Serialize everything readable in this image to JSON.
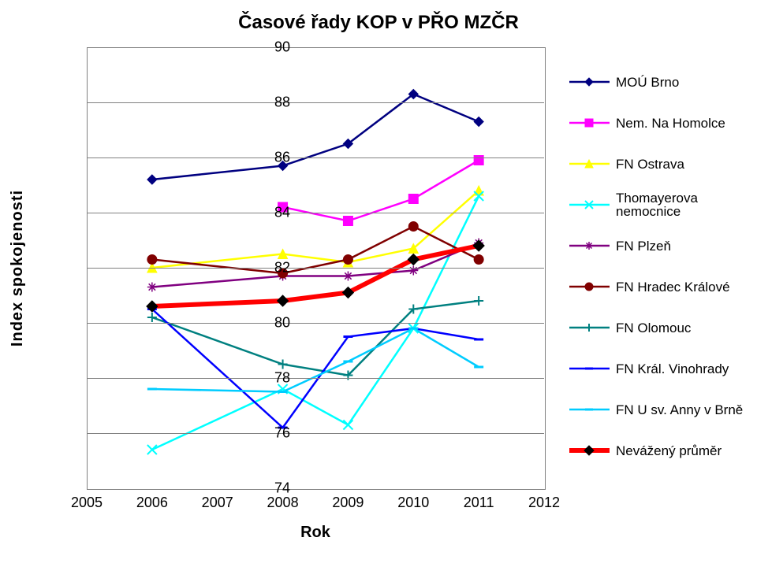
{
  "title": "Časové řady KOP v PŘO MZČR",
  "ylabel": "Index spokojenosti",
  "xlabel": "Rok",
  "background_color": "#ffffff",
  "grid_color": "#808080",
  "xlim": [
    2005,
    2012
  ],
  "ylim": [
    74,
    90
  ],
  "ytick_step": 2,
  "xtick_step": 1,
  "title_fontsize": 24,
  "label_fontsize": 20,
  "tick_fontsize": 18,
  "legend_fontsize": 17,
  "years": [
    2006,
    2008,
    2009,
    2010,
    2011
  ],
  "series": [
    {
      "name": "MOÚ Brno",
      "color": "#000080",
      "marker": "diamond",
      "width": 2.5,
      "values": [
        85.2,
        85.7,
        86.5,
        88.3,
        87.3
      ]
    },
    {
      "name": "Nem. Na Homolce",
      "color": "#ff00ff",
      "marker": "square",
      "width": 2.5,
      "values": [
        null,
        84.2,
        83.7,
        84.5,
        85.9
      ]
    },
    {
      "name": "FN Ostrava",
      "color": "#ffff00",
      "marker": "triangle",
      "width": 2.5,
      "values": [
        82.0,
        82.5,
        82.2,
        82.7,
        84.8
      ]
    },
    {
      "name": "Thomayerova nemocnice",
      "color": "#00ffff",
      "marker": "x",
      "width": 2.5,
      "values": [
        75.4,
        77.6,
        76.3,
        79.8,
        84.6
      ]
    },
    {
      "name": "FN Plzeň",
      "color": "#800080",
      "marker": "star",
      "width": 2.5,
      "values": [
        81.3,
        81.7,
        81.7,
        81.9,
        82.9
      ]
    },
    {
      "name": "FN Hradec Králové",
      "color": "#800000",
      "marker": "circle",
      "width": 2.5,
      "values": [
        82.3,
        81.8,
        82.3,
        83.5,
        82.3
      ]
    },
    {
      "name": "FN Olomouc",
      "color": "#008080",
      "marker": "plus",
      "width": 2.5,
      "values": [
        80.2,
        78.5,
        78.1,
        80.5,
        80.8
      ]
    },
    {
      "name": "FN Král. Vinohrady",
      "color": "#0000ff",
      "marker": "dash",
      "width": 2.5,
      "values": [
        80.5,
        76.2,
        79.5,
        79.8,
        79.4
      ]
    },
    {
      "name": "FN U sv. Anny v Brně",
      "color": "#00ccff",
      "marker": "dash",
      "width": 2.5,
      "values": [
        77.6,
        77.5,
        78.6,
        79.8,
        78.4
      ]
    },
    {
      "name": "Nevážený průměr",
      "color": "#ff0000",
      "marker": "diamond",
      "width": 6,
      "values": [
        80.6,
        80.8,
        81.1,
        82.3,
        82.8
      ],
      "marker_color": "#000000"
    }
  ]
}
